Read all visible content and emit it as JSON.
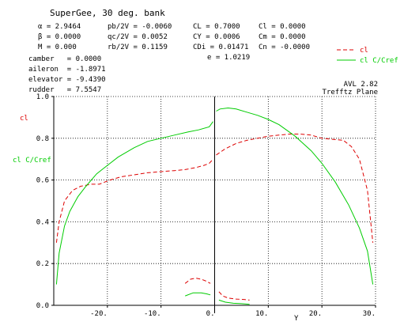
{
  "header": {
    "title": "SuperGee, 30 deg. bank",
    "params_col1": [
      "α = 2.9464",
      "β = 0.0000",
      "M = 0.000"
    ],
    "params_col2": [
      "pb/2V = -0.0060",
      "qc/2V = 0.0052",
      "rb/2V = 0.1159"
    ],
    "params_col3": [
      "CL = 0.7000",
      "CY = 0.0006",
      "CDi = 0.01471",
      "e = 1.0219"
    ],
    "params_col4": [
      "Cl = 0.0000",
      "Cm = 0.0000",
      "Cn = -0.0000"
    ],
    "controls": [
      "camber   = 0.0000",
      "aileron  = -1.8971",
      "elevator = -9.4390",
      "rudder   = 7.5547"
    ]
  },
  "program": {
    "line1": "AVL 2.82",
    "line2": "Trefftz Plane"
  },
  "colors": {
    "cl": "#dd0000",
    "clc": "#00cc00",
    "axis": "#000000",
    "grid": "#000000"
  },
  "chart_data": {
    "type": "line",
    "xlabel": "Y",
    "left_labels": {
      "cl": "cl",
      "clc": "cl C/Cref"
    },
    "legend_position": "top-right",
    "grid": true,
    "xlim": [
      -30,
      30
    ],
    "ylim": [
      0,
      1.0
    ],
    "xticks": [
      -20,
      -10,
      0,
      10,
      20,
      30
    ],
    "xtick_labels": [
      "-20.",
      "-10.",
      "0.",
      "10.",
      "20.",
      "30."
    ],
    "yticks": [
      0,
      0.2,
      0.4,
      0.6,
      0.8,
      1.0
    ],
    "ytick_labels": [
      "0.0",
      "0.2",
      "0.4",
      "0.6",
      "0.8",
      "1.0"
    ],
    "series": [
      {
        "name": "cl",
        "style": "dashed",
        "segments": [
          {
            "x": [
              -29.5,
              -29.0,
              -28.0,
              -26.5,
              -25.0,
              -23.0,
              -21.5,
              -20.5,
              -19.5,
              -17.5,
              -15.0,
              -12.5,
              -10.0,
              -7.5,
              -5.5,
              -3.5,
              -2.0,
              -1.0,
              -0.3
            ],
            "y": [
              0.3,
              0.4,
              0.5,
              0.55,
              0.57,
              0.58,
              0.58,
              0.59,
              0.6,
              0.615,
              0.625,
              0.635,
              0.64,
              0.645,
              0.65,
              0.66,
              0.67,
              0.68,
              0.7
            ]
          },
          {
            "x": [
              0.3,
              2.0,
              4.0,
              6.0,
              8.0,
              10.0,
              12.0,
              14.0,
              16.0,
              18.0,
              20.0,
              22.0,
              24.0,
              25.5,
              27.0,
              28.5,
              29.5
            ],
            "y": [
              0.72,
              0.75,
              0.775,
              0.79,
              0.8,
              0.81,
              0.815,
              0.82,
              0.82,
              0.815,
              0.8,
              0.795,
              0.79,
              0.76,
              0.7,
              0.55,
              0.3
            ]
          },
          {
            "x": [
              -5.5,
              -4.5,
              -3.5,
              -2.5,
              -1.5,
              -0.8
            ],
            "y": [
              0.105,
              0.125,
              0.13,
              0.125,
              0.115,
              0.105
            ]
          },
          {
            "x": [
              0.8,
              1.5,
              2.5,
              4.0,
              5.5,
              6.5
            ],
            "y": [
              0.065,
              0.045,
              0.035,
              0.03,
              0.028,
              0.025
            ]
          }
        ]
      },
      {
        "name": "cl C/Cref",
        "style": "solid",
        "segments": [
          {
            "x": [
              -29.5,
              -29.0,
              -28.0,
              -27.0,
              -25.5,
              -24.0,
              -22.0,
              -20.0,
              -18.0,
              -15.0,
              -12.5,
              -10.0,
              -7.5,
              -5.0,
              -3.0,
              -1.0,
              -0.3
            ],
            "y": [
              0.1,
              0.25,
              0.38,
              0.45,
              0.52,
              0.57,
              0.63,
              0.67,
              0.71,
              0.755,
              0.785,
              0.8,
              0.815,
              0.83,
              0.84,
              0.855,
              0.88
            ]
          },
          {
            "x": [
              0.3,
              1.0,
              2.5,
              4.0,
              6.0,
              8.0,
              10.0,
              12.0,
              15.0,
              18.0,
              20.0,
              22.5,
              25.0,
              27.0,
              28.5,
              29.5
            ],
            "y": [
              0.93,
              0.94,
              0.945,
              0.94,
              0.925,
              0.91,
              0.89,
              0.865,
              0.81,
              0.74,
              0.68,
              0.59,
              0.48,
              0.37,
              0.26,
              0.1
            ]
          },
          {
            "x": [
              -5.5,
              -4.0,
              -2.5,
              -1.5,
              -0.8
            ],
            "y": [
              0.045,
              0.06,
              0.06,
              0.055,
              0.05
            ]
          },
          {
            "x": [
              0.8,
              2.0,
              3.5,
              5.0,
              6.5
            ],
            "y": [
              0.025,
              0.015,
              0.01,
              0.008,
              0.005
            ]
          }
        ]
      }
    ]
  }
}
